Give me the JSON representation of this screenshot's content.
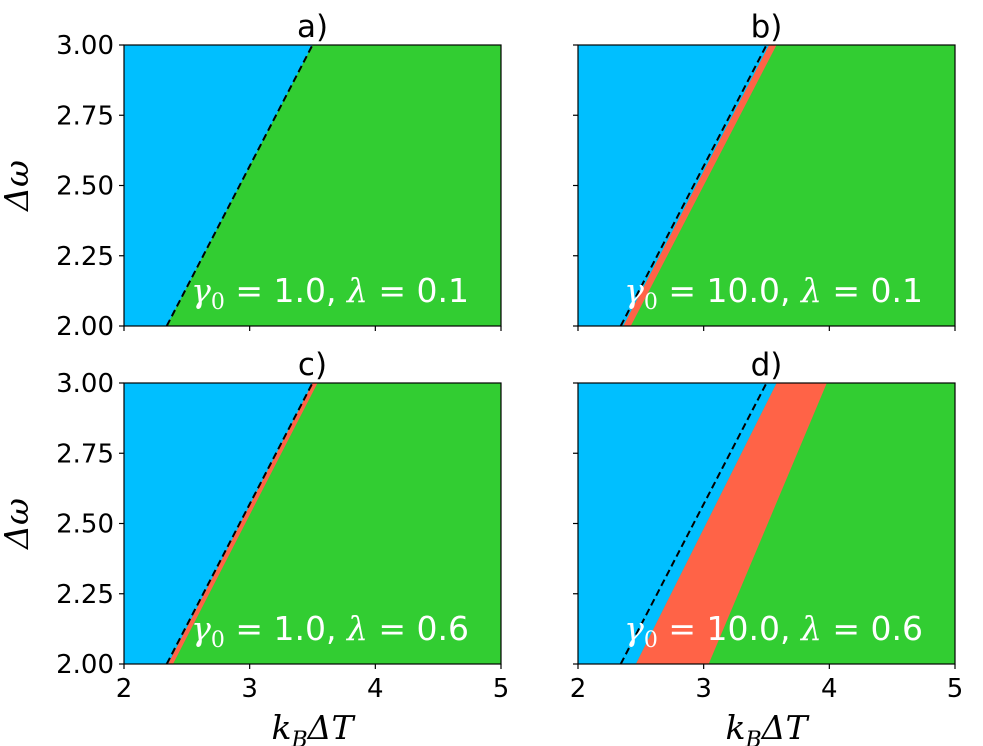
{
  "colors": {
    "region_left": "#00bfff",
    "region_middle": "#ff6347",
    "region_right": "#32cd32",
    "boundary_line": "#000000",
    "annotation_text": "#ffffff"
  },
  "chart_data": [
    {
      "type": "heatmap",
      "title": "a)",
      "annotation": {
        "gamma_label": "γ",
        "gamma_sub": "0",
        "gamma_value": "= 1.0,",
        "lambda_label": "λ",
        "lambda_value": "= 0.1"
      },
      "xlim": [
        2,
        5
      ],
      "ylim": [
        2,
        3
      ],
      "x_ticks": [
        "2",
        "3",
        "4",
        "5"
      ],
      "y_ticks": [
        "2.00",
        "2.25",
        "2.50",
        "2.75",
        "3.00"
      ],
      "xlabel": "",
      "ylabel": "Δω",
      "dashed_line": {
        "x_at_y2": 2.34,
        "x_at_y3": 3.5
      },
      "left_boundary": {
        "x_at_y2": 2.34,
        "x_at_y3": 3.5
      },
      "right_boundary": {
        "x_at_y2": 2.34,
        "x_at_y3": 3.5
      },
      "show_x_tick_labels": false,
      "show_y_tick_labels": true
    },
    {
      "type": "heatmap",
      "title": "b)",
      "annotation": {
        "gamma_label": "γ",
        "gamma_sub": "0",
        "gamma_value": "= 10.0,",
        "lambda_label": "λ",
        "lambda_value": "= 0.1"
      },
      "xlim": [
        2,
        5
      ],
      "ylim": [
        2,
        3
      ],
      "x_ticks": [
        "2",
        "3",
        "4",
        "5"
      ],
      "y_ticks": [
        "2.00",
        "2.25",
        "2.50",
        "2.75",
        "3.00"
      ],
      "xlabel": "",
      "ylabel": "",
      "dashed_line": {
        "x_at_y2": 2.34,
        "x_at_y3": 3.5
      },
      "left_boundary": {
        "x_at_y2": 2.36,
        "x_at_y3": 3.52
      },
      "right_boundary": {
        "x_at_y2": 2.42,
        "x_at_y3": 3.58
      },
      "show_x_tick_labels": false,
      "show_y_tick_labels": false
    },
    {
      "type": "heatmap",
      "title": "c)",
      "annotation": {
        "gamma_label": "γ",
        "gamma_sub": "0",
        "gamma_value": "= 1.0,",
        "lambda_label": "λ",
        "lambda_value": "= 0.6"
      },
      "xlim": [
        2,
        5
      ],
      "ylim": [
        2,
        3
      ],
      "x_ticks": [
        "2",
        "3",
        "4",
        "5"
      ],
      "y_ticks": [
        "2.00",
        "2.25",
        "2.50",
        "2.75",
        "3.00"
      ],
      "xlabel": "k_BΔT",
      "ylabel": "Δω",
      "dashed_line": {
        "x_at_y2": 2.34,
        "x_at_y3": 3.5
      },
      "left_boundary": {
        "x_at_y2": 2.35,
        "x_at_y3": 3.5
      },
      "right_boundary": {
        "x_at_y2": 2.39,
        "x_at_y3": 3.54
      },
      "show_x_tick_labels": true,
      "show_y_tick_labels": true
    },
    {
      "type": "heatmap",
      "title": "d)",
      "annotation": {
        "gamma_label": "γ",
        "gamma_sub": "0",
        "gamma_value": "= 10.0,",
        "lambda_label": "λ",
        "lambda_value": "= 0.6"
      },
      "xlim": [
        2,
        5
      ],
      "ylim": [
        2,
        3
      ],
      "x_ticks": [
        "2",
        "3",
        "4",
        "5"
      ],
      "y_ticks": [
        "2.00",
        "2.25",
        "2.50",
        "2.75",
        "3.00"
      ],
      "xlabel": "k_BΔT",
      "ylabel": "",
      "dashed_line": {
        "x_at_y2": 2.34,
        "x_at_y3": 3.5
      },
      "left_boundary": {
        "x_at_y2": 2.46,
        "x_at_y3": 3.58
      },
      "right_boundary": {
        "x_at_y2": 3.04,
        "x_at_y3": 3.98
      },
      "show_x_tick_labels": true,
      "show_y_tick_labels": false
    }
  ]
}
